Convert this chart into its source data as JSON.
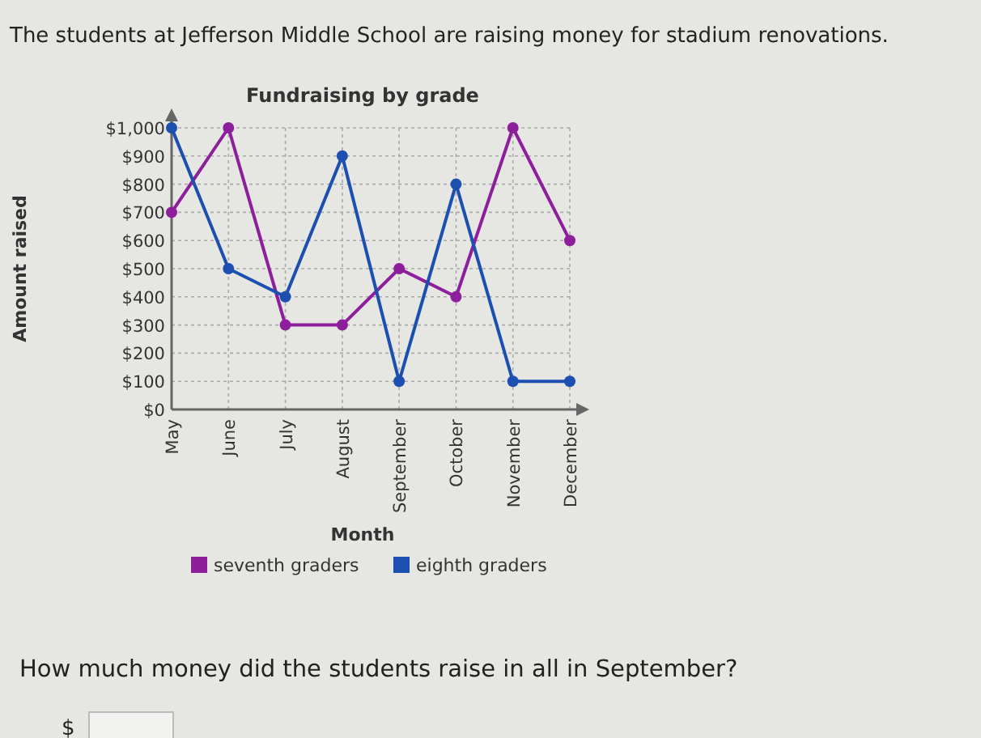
{
  "chart_data": {
    "type": "line",
    "title": "Fundraising by grade",
    "xlabel": "Month",
    "ylabel": "Amount raised",
    "categories": [
      "May",
      "June",
      "July",
      "August",
      "September",
      "October",
      "November",
      "December"
    ],
    "series": [
      {
        "name": "seventh graders",
        "color": "#8e1f9c",
        "values": [
          700,
          1000,
          300,
          300,
          500,
          400,
          1000,
          600
        ]
      },
      {
        "name": "eighth graders",
        "color": "#1c4fb0",
        "values": [
          1000,
          500,
          400,
          900,
          100,
          800,
          100,
          100
        ]
      }
    ],
    "ylim": [
      0,
      1000
    ],
    "yticks": [
      {
        "value": 0,
        "label": "$0"
      },
      {
        "value": 100,
        "label": "$100"
      },
      {
        "value": 200,
        "label": "$200"
      },
      {
        "value": 300,
        "label": "$300"
      },
      {
        "value": 400,
        "label": "$400"
      },
      {
        "value": 500,
        "label": "$500"
      },
      {
        "value": 600,
        "label": "$600"
      },
      {
        "value": 700,
        "label": "$700"
      },
      {
        "value": 800,
        "label": "$800"
      },
      {
        "value": 900,
        "label": "$900"
      },
      {
        "value": 1000,
        "label": "$1,000"
      }
    ],
    "grid": true,
    "legend": "bottom",
    "marker": "circle",
    "line_style": "solid",
    "annotations": [
      "The students at Jefferson Middle School are raising money for stadium renovations.",
      "How much money did the students raise in all in September?",
      "$"
    ]
  }
}
